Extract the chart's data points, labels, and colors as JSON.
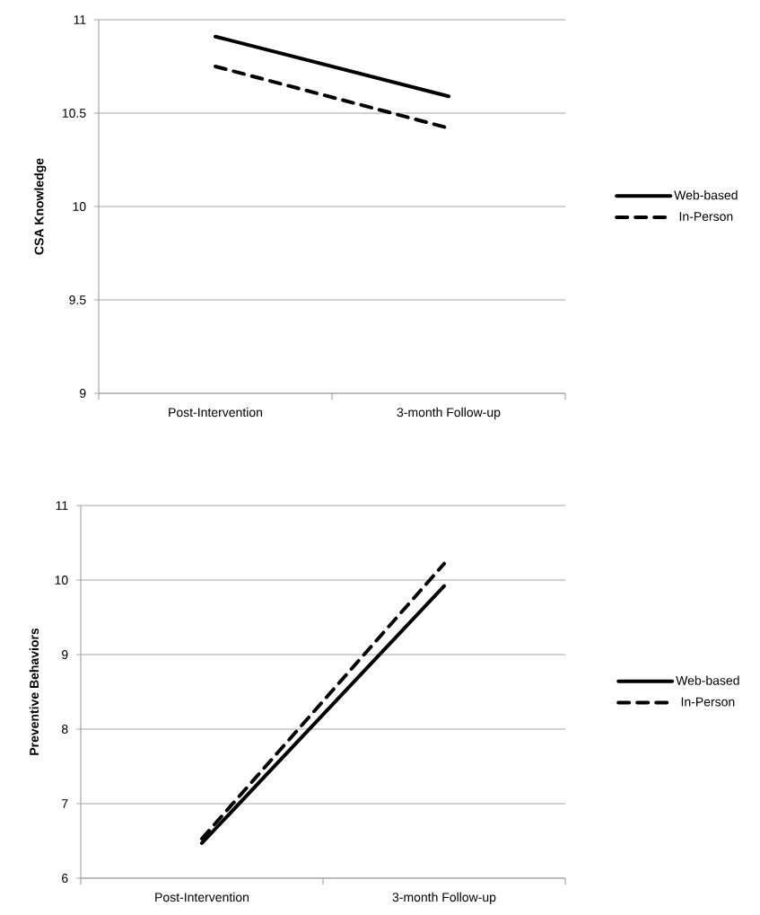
{
  "chart_data": [
    {
      "type": "line",
      "ylabel": "CSA Knowledge",
      "categories": [
        "Post-Intervention",
        "3-month Follow-up"
      ],
      "series": [
        {
          "name": "Web-based",
          "color": "#000000",
          "line_style": "solid",
          "values": [
            10.91,
            10.59
          ]
        },
        {
          "name": "In-Person",
          "color": "#000000",
          "line_style": "dashed",
          "values": [
            10.75,
            10.42
          ]
        }
      ],
      "ylim": [
        9,
        11
      ],
      "yticks": [
        9,
        9.5,
        10,
        10.5,
        11
      ],
      "grid": "y",
      "legend": "right"
    },
    {
      "type": "line",
      "ylabel": "Preventive Behaviors",
      "categories": [
        "Post-Intervention",
        "3-month Follow-up"
      ],
      "series": [
        {
          "name": "Web-based",
          "color": "#000000",
          "line_style": "solid",
          "values": [
            6.47,
            9.92
          ]
        },
        {
          "name": "In-Person",
          "color": "#000000",
          "line_style": "dashed",
          "values": [
            6.53,
            10.22
          ]
        }
      ],
      "ylim": [
        6,
        11
      ],
      "yticks": [
        6,
        7,
        8,
        9,
        10,
        11
      ],
      "grid": "y",
      "legend": "right"
    }
  ]
}
